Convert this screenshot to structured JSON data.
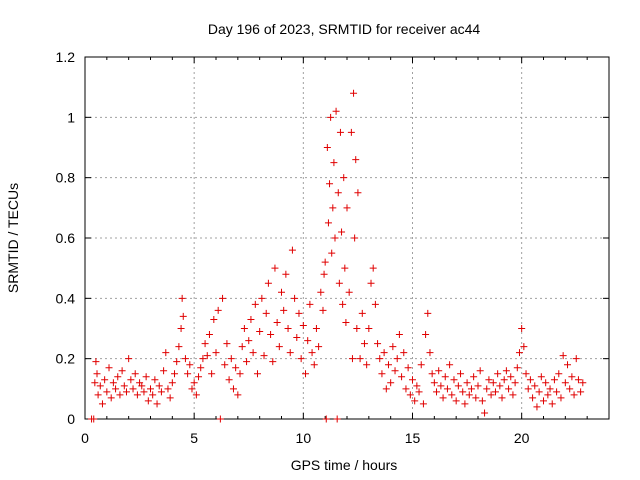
{
  "chart_data": {
    "type": "scatter",
    "title": "Day 196 of 2023, SRMTID for receiver ac44",
    "xlabel": "GPS time / hours",
    "ylabel": "SRMTID / TECUs",
    "xlim": [
      0,
      24
    ],
    "ylim": [
      0,
      1.2
    ],
    "xticks": [
      0,
      5,
      10,
      15,
      20
    ],
    "yticks": [
      0,
      0.2,
      0.4,
      0.6,
      0.8,
      1.0,
      1.2
    ],
    "ytick_labels": [
      "0",
      "0.2",
      "0.4",
      "0.6",
      "0.8",
      "1",
      "1.2"
    ],
    "grid": true,
    "marker": "plus",
    "marker_color": "#e00000",
    "series": [
      {
        "name": "SRMTID",
        "points": [
          [
            0.3,
            0.0
          ],
          [
            0.4,
            0.0
          ],
          [
            0.45,
            0.12
          ],
          [
            0.5,
            0.19
          ],
          [
            0.55,
            0.15
          ],
          [
            0.6,
            0.08
          ],
          [
            0.7,
            0.11
          ],
          [
            0.8,
            0.05
          ],
          [
            0.9,
            0.13
          ],
          [
            1.0,
            0.09
          ],
          [
            1.1,
            0.17
          ],
          [
            1.2,
            0.07
          ],
          [
            1.3,
            0.12
          ],
          [
            1.4,
            0.1
          ],
          [
            1.5,
            0.14
          ],
          [
            1.6,
            0.08
          ],
          [
            1.7,
            0.16
          ],
          [
            1.8,
            0.11
          ],
          [
            1.9,
            0.09
          ],
          [
            2.0,
            0.2
          ],
          [
            2.1,
            0.13
          ],
          [
            2.2,
            0.1
          ],
          [
            2.3,
            0.15
          ],
          [
            2.4,
            0.08
          ],
          [
            2.5,
            0.12
          ],
          [
            2.6,
            0.11
          ],
          [
            2.7,
            0.09
          ],
          [
            2.8,
            0.14
          ],
          [
            2.9,
            0.06
          ],
          [
            3.0,
            0.1
          ],
          [
            3.1,
            0.08
          ],
          [
            3.2,
            0.13
          ],
          [
            3.3,
            0.05
          ],
          [
            3.4,
            0.11
          ],
          [
            3.5,
            0.09
          ],
          [
            3.6,
            0.16
          ],
          [
            3.7,
            0.22
          ],
          [
            3.8,
            0.1
          ],
          [
            3.9,
            0.07
          ],
          [
            4.0,
            0.12
          ],
          [
            4.1,
            0.15
          ],
          [
            4.2,
            0.19
          ],
          [
            4.3,
            0.24
          ],
          [
            4.4,
            0.3
          ],
          [
            4.45,
            0.4
          ],
          [
            4.5,
            0.34
          ],
          [
            4.6,
            0.2
          ],
          [
            4.7,
            0.15
          ],
          [
            4.8,
            0.18
          ],
          [
            4.9,
            0.1
          ],
          [
            5.0,
            0.12
          ],
          [
            5.1,
            0.08
          ],
          [
            5.2,
            0.14
          ],
          [
            5.3,
            0.17
          ],
          [
            5.4,
            0.2
          ],
          [
            5.5,
            0.25
          ],
          [
            5.6,
            0.21
          ],
          [
            5.7,
            0.28
          ],
          [
            5.8,
            0.15
          ],
          [
            5.9,
            0.33
          ],
          [
            6.0,
            0.22
          ],
          [
            6.1,
            0.36
          ],
          [
            6.2,
            0.0
          ],
          [
            6.3,
            0.4
          ],
          [
            6.4,
            0.18
          ],
          [
            6.5,
            0.25
          ],
          [
            6.6,
            0.13
          ],
          [
            6.7,
            0.2
          ],
          [
            6.8,
            0.1
          ],
          [
            6.9,
            0.17
          ],
          [
            7.0,
            0.08
          ],
          [
            7.1,
            0.15
          ],
          [
            7.2,
            0.24
          ],
          [
            7.3,
            0.3
          ],
          [
            7.4,
            0.19
          ],
          [
            7.5,
            0.26
          ],
          [
            7.6,
            0.33
          ],
          [
            7.7,
            0.22
          ],
          [
            7.8,
            0.38
          ],
          [
            7.9,
            0.15
          ],
          [
            8.0,
            0.29
          ],
          [
            8.1,
            0.4
          ],
          [
            8.2,
            0.21
          ],
          [
            8.3,
            0.35
          ],
          [
            8.4,
            0.45
          ],
          [
            8.5,
            0.28
          ],
          [
            8.6,
            0.19
          ],
          [
            8.7,
            0.5
          ],
          [
            8.8,
            0.32
          ],
          [
            8.9,
            0.24
          ],
          [
            9.0,
            0.42
          ],
          [
            9.1,
            0.36
          ],
          [
            9.2,
            0.48
          ],
          [
            9.3,
            0.3
          ],
          [
            9.4,
            0.22
          ],
          [
            9.5,
            0.56
          ],
          [
            9.6,
            0.4
          ],
          [
            9.7,
            0.27
          ],
          [
            9.8,
            0.35
          ],
          [
            9.9,
            0.2
          ],
          [
            10.0,
            0.31
          ],
          [
            10.1,
            0.15
          ],
          [
            10.2,
            0.26
          ],
          [
            10.3,
            0.38
          ],
          [
            10.4,
            0.22
          ],
          [
            10.5,
            0.18
          ],
          [
            10.6,
            0.3
          ],
          [
            10.7,
            0.24
          ],
          [
            10.8,
            0.42
          ],
          [
            10.9,
            0.36
          ],
          [
            10.95,
            0.48
          ],
          [
            11.0,
            0.52
          ],
          [
            11.05,
            0.0
          ],
          [
            11.1,
            0.9
          ],
          [
            11.15,
            0.65
          ],
          [
            11.2,
            0.78
          ],
          [
            11.25,
            1.0
          ],
          [
            11.3,
            0.55
          ],
          [
            11.35,
            0.7
          ],
          [
            11.4,
            0.85
          ],
          [
            11.45,
            0.6
          ],
          [
            11.5,
            1.02
          ],
          [
            11.55,
            0.0
          ],
          [
            11.6,
            0.75
          ],
          [
            11.65,
            0.45
          ],
          [
            11.7,
            0.95
          ],
          [
            11.75,
            0.62
          ],
          [
            11.8,
            0.38
          ],
          [
            11.85,
            0.8
          ],
          [
            11.9,
            0.5
          ],
          [
            11.95,
            0.32
          ],
          [
            12.0,
            0.7
          ],
          [
            12.1,
            0.42
          ],
          [
            12.2,
            0.95
          ],
          [
            12.25,
            0.2
          ],
          [
            12.3,
            1.08
          ],
          [
            12.35,
            0.6
          ],
          [
            12.4,
            0.86
          ],
          [
            12.45,
            0.3
          ],
          [
            12.5,
            0.75
          ],
          [
            12.6,
            0.2
          ],
          [
            12.7,
            0.35
          ],
          [
            12.8,
            0.25
          ],
          [
            12.9,
            0.18
          ],
          [
            13.0,
            0.3
          ],
          [
            13.1,
            0.45
          ],
          [
            13.2,
            0.5
          ],
          [
            13.3,
            0.38
          ],
          [
            13.4,
            0.25
          ],
          [
            13.5,
            0.2
          ],
          [
            13.6,
            0.15
          ],
          [
            13.7,
            0.22
          ],
          [
            13.8,
            0.1
          ],
          [
            13.9,
            0.18
          ],
          [
            14.0,
            0.12
          ],
          [
            14.1,
            0.24
          ],
          [
            14.2,
            0.16
          ],
          [
            14.3,
            0.2
          ],
          [
            14.4,
            0.28
          ],
          [
            14.5,
            0.14
          ],
          [
            14.6,
            0.22
          ],
          [
            14.7,
            0.1
          ],
          [
            14.8,
            0.17
          ],
          [
            14.9,
            0.08
          ],
          [
            15.0,
            0.13
          ],
          [
            15.1,
            0.06
          ],
          [
            15.2,
            0.11
          ],
          [
            15.3,
            0.09
          ],
          [
            15.4,
            0.18
          ],
          [
            15.5,
            0.05
          ],
          [
            15.6,
            0.28
          ],
          [
            15.7,
            0.35
          ],
          [
            15.8,
            0.22
          ],
          [
            15.9,
            0.15
          ],
          [
            16.0,
            0.12
          ],
          [
            16.1,
            0.09
          ],
          [
            16.2,
            0.16
          ],
          [
            16.3,
            0.11
          ],
          [
            16.4,
            0.07
          ],
          [
            16.5,
            0.14
          ],
          [
            16.6,
            0.1
          ],
          [
            16.7,
            0.18
          ],
          [
            16.8,
            0.08
          ],
          [
            16.9,
            0.13
          ],
          [
            17.0,
            0.06
          ],
          [
            17.1,
            0.11
          ],
          [
            17.2,
            0.15
          ],
          [
            17.3,
            0.09
          ],
          [
            17.4,
            0.05
          ],
          [
            17.5,
            0.12
          ],
          [
            17.6,
            0.08
          ],
          [
            17.7,
            0.1
          ],
          [
            17.8,
            0.14
          ],
          [
            17.9,
            0.07
          ],
          [
            18.0,
            0.11
          ],
          [
            18.1,
            0.16
          ],
          [
            18.2,
            0.06
          ],
          [
            18.3,
            0.02
          ],
          [
            18.4,
            0.1
          ],
          [
            18.5,
            0.13
          ],
          [
            18.6,
            0.08
          ],
          [
            18.7,
            0.12
          ],
          [
            18.8,
            0.09
          ],
          [
            18.9,
            0.15
          ],
          [
            19.0,
            0.11
          ],
          [
            19.1,
            0.07
          ],
          [
            19.2,
            0.13
          ],
          [
            19.3,
            0.16
          ],
          [
            19.4,
            0.1
          ],
          [
            19.5,
            0.14
          ],
          [
            19.6,
            0.08
          ],
          [
            19.7,
            0.12
          ],
          [
            19.8,
            0.17
          ],
          [
            19.9,
            0.22
          ],
          [
            20.0,
            0.3
          ],
          [
            20.1,
            0.24
          ],
          [
            20.2,
            0.15
          ],
          [
            20.3,
            0.1
          ],
          [
            20.4,
            0.13
          ],
          [
            20.5,
            0.07
          ],
          [
            20.6,
            0.11
          ],
          [
            20.7,
            0.04
          ],
          [
            20.8,
            0.09
          ],
          [
            20.9,
            0.14
          ],
          [
            21.0,
            0.06
          ],
          [
            21.1,
            0.12
          ],
          [
            21.2,
            0.08
          ],
          [
            21.3,
            0.1
          ],
          [
            21.4,
            0.05
          ],
          [
            21.5,
            0.13
          ],
          [
            21.6,
            0.09
          ],
          [
            21.7,
            0.15
          ],
          [
            21.8,
            0.07
          ],
          [
            21.9,
            0.21
          ],
          [
            22.0,
            0.12
          ],
          [
            22.1,
            0.18
          ],
          [
            22.2,
            0.1
          ],
          [
            22.3,
            0.14
          ],
          [
            22.4,
            0.08
          ],
          [
            22.5,
            0.2
          ],
          [
            22.6,
            0.13
          ],
          [
            22.7,
            0.09
          ],
          [
            22.8,
            0.12
          ]
        ]
      }
    ]
  }
}
